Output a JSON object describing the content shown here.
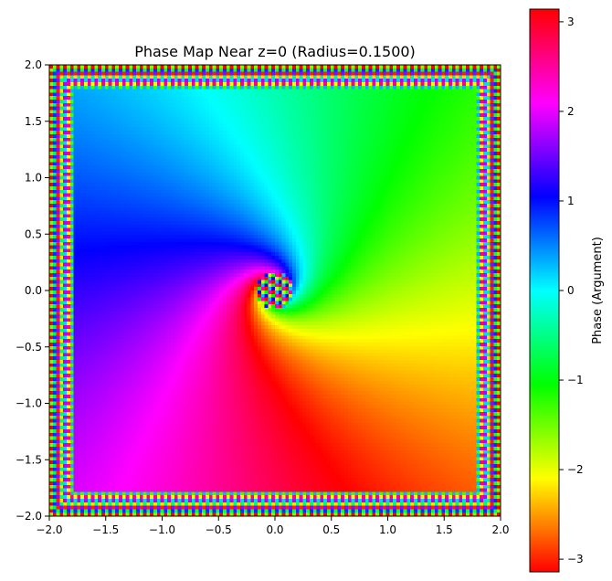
{
  "chart_data": {
    "type": "heatmap",
    "title": "Phase Map Near z=0 (Radius=0.1500)",
    "xlabel": "",
    "ylabel": "",
    "xlim": [
      -2.0,
      2.0
    ],
    "ylim": [
      -2.0,
      2.0
    ],
    "x_ticks": [
      "−2.0",
      "−1.5",
      "−1.0",
      "−0.5",
      "0.0",
      "0.5",
      "1.0",
      "1.5",
      "2.0"
    ],
    "y_ticks": [
      "−2.0",
      "−1.5",
      "−1.0",
      "−0.5",
      "0.0",
      "0.5",
      "1.0",
      "1.5",
      "2.0"
    ],
    "colorbar": {
      "label": "Phase (Argument)",
      "range": [
        -3.14159,
        3.14159
      ],
      "ticks": [
        "−3",
        "−2",
        "−1",
        "0",
        "1",
        "2",
        "3"
      ],
      "colormap": "hsv"
    },
    "grid": false
  }
}
